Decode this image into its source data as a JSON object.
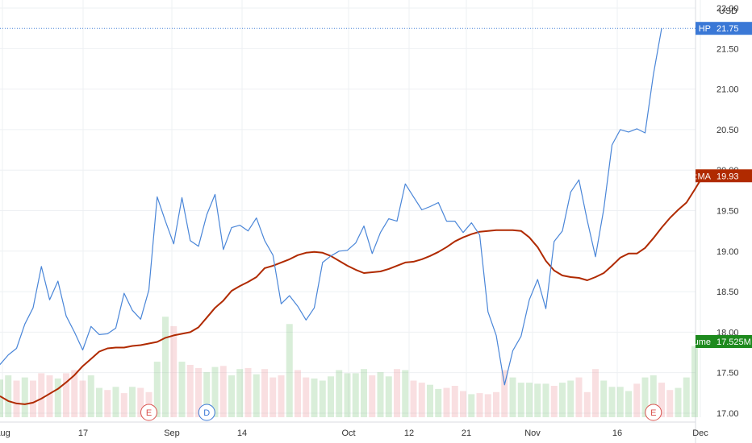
{
  "chart_data": {
    "type": "line",
    "currency": "USD",
    "x_tick_labels": [
      "Aug",
      "17",
      "Sep",
      "14",
      "Oct",
      "12",
      "21",
      "Nov",
      "16",
      "Dec"
    ],
    "y_tick_labels": [
      "17.00",
      "17.50",
      "18.00",
      "18.50",
      "19.00",
      "19.50",
      "20.00",
      "20.50",
      "21.00",
      "21.50",
      "22.00"
    ],
    "ylim": [
      16.95,
      22.1
    ],
    "grid": true,
    "series": [
      {
        "name": "HP",
        "tag_label": "HP",
        "color": "#4a86d8",
        "last_value": "21.75",
        "values": [
          17.6,
          17.72,
          17.8,
          18.1,
          18.3,
          18.81,
          18.4,
          18.63,
          18.2,
          18.0,
          17.78,
          18.07,
          17.97,
          17.98,
          18.05,
          18.48,
          18.27,
          18.16,
          18.52,
          19.67,
          19.37,
          19.09,
          19.66,
          19.13,
          19.06,
          19.45,
          19.7,
          19.02,
          19.29,
          19.32,
          19.25,
          19.41,
          19.13,
          18.95,
          18.35,
          18.45,
          18.32,
          18.15,
          18.3,
          18.86,
          18.94,
          19.0,
          19.01,
          19.1,
          19.31,
          18.97,
          19.23,
          19.4,
          19.37,
          19.83,
          19.67,
          19.51,
          19.55,
          19.6,
          19.37,
          19.37,
          19.23,
          19.35,
          19.2,
          18.25,
          17.96,
          17.35,
          17.77,
          17.95,
          18.4,
          18.65,
          18.29,
          19.12,
          19.25,
          19.73,
          19.88,
          19.38,
          18.93,
          19.52,
          20.31,
          20.5,
          20.47,
          20.51,
          20.46,
          21.18,
          21.75
        ]
      },
      {
        "name": "EMA:MA",
        "tag_label": "EMA:MA",
        "color": "#b02a00",
        "last_value": "19.93",
        "values": [
          17.21,
          17.15,
          17.12,
          17.11,
          17.13,
          17.18,
          17.24,
          17.3,
          17.38,
          17.47,
          17.58,
          17.67,
          17.76,
          17.8,
          17.81,
          17.81,
          17.83,
          17.84,
          17.86,
          17.88,
          17.93,
          17.96,
          17.98,
          18.0,
          18.06,
          18.18,
          18.3,
          18.39,
          18.51,
          18.57,
          18.62,
          18.68,
          18.79,
          18.82,
          18.86,
          18.9,
          18.95,
          18.98,
          18.99,
          18.98,
          18.94,
          18.88,
          18.82,
          18.77,
          18.73,
          18.74,
          18.75,
          18.78,
          18.82,
          18.86,
          18.87,
          18.9,
          18.94,
          18.99,
          19.05,
          19.12,
          19.17,
          19.21,
          19.24,
          19.25,
          19.26,
          19.26,
          19.26,
          19.25,
          19.17,
          19.05,
          18.88,
          18.76,
          18.7,
          18.68,
          18.67,
          18.64,
          18.68,
          18.73,
          18.82,
          18.92,
          18.97,
          18.97,
          19.04,
          19.16,
          19.29,
          19.41,
          19.51,
          19.6,
          19.76,
          19.93
        ]
      },
      {
        "name": "Volume",
        "tag_label": "Volume",
        "color": "#1e8a1e",
        "last_value": "17.525M",
        "values": [
          0.36,
          0.4,
          0.35,
          0.38,
          0.35,
          0.42,
          0.4,
          0.37,
          0.42,
          0.45,
          0.35,
          0.4,
          0.28,
          0.26,
          0.29,
          0.23,
          0.29,
          0.28,
          0.24,
          0.53,
          0.96,
          0.87,
          0.53,
          0.5,
          0.47,
          0.43,
          0.48,
          0.49,
          0.4,
          0.46,
          0.47,
          0.41,
          0.46,
          0.38,
          0.4,
          0.89,
          0.45,
          0.38,
          0.37,
          0.35,
          0.39,
          0.45,
          0.42,
          0.42,
          0.46,
          0.4,
          0.43,
          0.39,
          0.46,
          0.45,
          0.35,
          0.33,
          0.31,
          0.27,
          0.28,
          0.3,
          0.25,
          0.22,
          0.23,
          0.22,
          0.24,
          0.45,
          0.38,
          0.33,
          0.33,
          0.32,
          0.32,
          0.3,
          0.33,
          0.35,
          0.38,
          0.24,
          0.46,
          0.35,
          0.29,
          0.29,
          0.25,
          0.32,
          0.38,
          0.4,
          0.33,
          0.26,
          0.28,
          0.38,
          0.68
        ],
        "up": [
          1,
          1,
          0,
          1,
          0,
          0,
          0,
          1,
          0,
          0,
          0,
          1,
          1,
          0,
          1,
          0,
          1,
          0,
          0,
          1,
          1,
          0,
          1,
          0,
          0,
          1,
          1,
          0,
          1,
          1,
          0,
          1,
          0,
          0,
          0,
          1,
          0,
          0,
          1,
          1,
          1,
          1,
          1,
          1,
          1,
          0,
          1,
          1,
          0,
          1,
          0,
          0,
          1,
          1,
          0,
          0,
          0,
          1,
          0,
          0,
          0,
          0,
          1,
          1,
          1,
          1,
          1,
          0,
          1,
          1,
          0,
          0,
          0,
          1,
          1,
          1,
          1,
          0,
          1,
          1,
          0,
          0,
          1,
          1,
          1
        ]
      }
    ],
    "events": [
      {
        "letter": "E",
        "x_index": 18,
        "color": "#d9534f"
      },
      {
        "letter": "D",
        "x_index": 25,
        "color": "#3a78d6"
      },
      {
        "letter": "E",
        "x_index": 79,
        "color": "#d9534f"
      }
    ]
  }
}
